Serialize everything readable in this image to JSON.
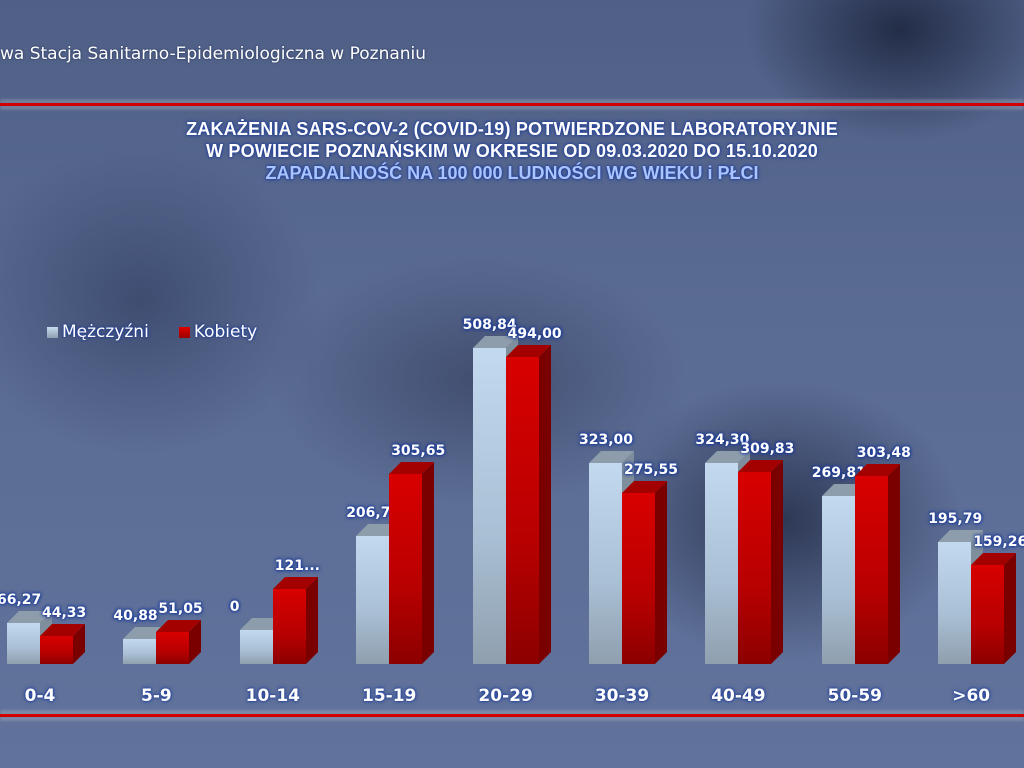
{
  "header": {
    "organization": "wa Stacja Sanitarno-Epidemiologiczna w Poznaniu"
  },
  "title": {
    "line1": "ZAKAŻENIA SARS-COV-2 (COVID-19) POTWIERDZONE LABORATORYJNIE",
    "line2": "W POWIECIE POZNAŃSKIM W OKRESIE OD 09.03.2020 DO 15.10.2020",
    "line3": "ZAPADALNOŚĆ NA 100 000 LUDNOŚCI WG WIEKU i PŁCI"
  },
  "legend": {
    "men": "Mężczyźni",
    "women": "Kobiety"
  },
  "colors": {
    "men": "#c3d9ef",
    "women": "#d80000",
    "rule": "#d40000"
  },
  "chart_data": {
    "type": "bar",
    "title": "ZAKAŻENIA SARS-COV-2 (COVID-19) POTWIERDZONE LABORATORYJNIE W POWIECIE POZNAŃSKIM W OKRESIE OD 09.03.2020 DO 15.10.2020",
    "subtitle": "ZAPADALNOŚĆ NA 100 000 LUDNOŚCI WG WIEKU i PŁCI",
    "xlabel": "",
    "ylabel": "",
    "categories": [
      "0-4",
      "5-9",
      "10-14",
      "15-19",
      "20-29",
      "30-39",
      "40-49",
      "50-59",
      ">60"
    ],
    "series": [
      {
        "name": "Mężczyźni",
        "values": [
          66.27,
          40.88,
          0,
          206.73,
          508.84,
          323.0,
          324.3,
          269.81,
          195.79
        ],
        "labels": [
          "66,27",
          "40,88",
          "0",
          "206,73",
          "508,84",
          "323,00",
          "324,30",
          "269,81",
          "195,79"
        ]
      },
      {
        "name": "Kobiety",
        "values": [
          44.33,
          51.05,
          121,
          305.65,
          494.0,
          275.55,
          309.83,
          303.48,
          159.26
        ],
        "labels": [
          "44,33",
          "51,05",
          "121...",
          "305,65",
          "494,00",
          "275,55",
          "309,83",
          "303,48",
          "159,26"
        ]
      }
    ],
    "ylim": [
      0,
      520
    ],
    "grid": false,
    "legend_position": "top-left",
    "style": "3d-clustered-column"
  }
}
